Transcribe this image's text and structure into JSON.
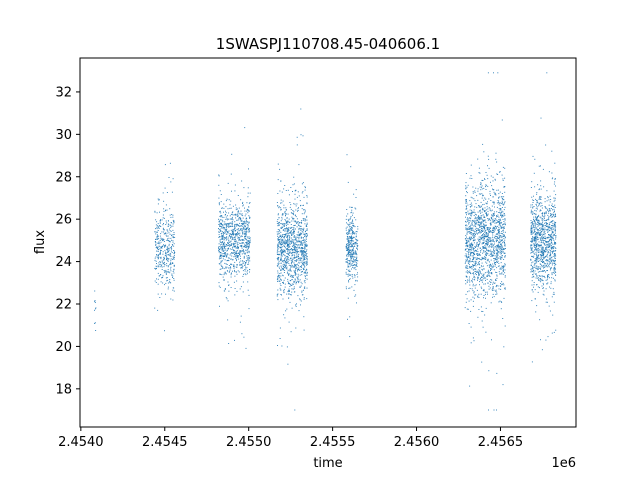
{
  "chart_data": {
    "type": "scatter",
    "title": "1SWASPJ110708.45-040606.1",
    "xlabel": "time",
    "ylabel": "flux",
    "x_offset_label": "1e6",
    "xlim": [
      2453995,
      2456950
    ],
    "ylim": [
      16.2,
      33.6
    ],
    "x_tick_labels": [
      "2.4540",
      "2.4545",
      "2.4550",
      "2.4555",
      "2.4560",
      "2.4565"
    ],
    "x_tick_values": [
      2454000,
      2454500,
      2455000,
      2455500,
      2456000,
      2456500
    ],
    "y_tick_values": [
      18,
      20,
      22,
      24,
      26,
      28,
      30,
      32
    ],
    "grid": false,
    "marker_color": "#1f77b4",
    "series": [
      {
        "clusters": [
          {
            "x_min": 2454080,
            "x_max": 2454090,
            "y_center": 21.8,
            "y_spread": 1.2,
            "n": 10
          },
          {
            "x_min": 2454440,
            "x_max": 2454560,
            "y_center": 24.6,
            "y_spread": 1.6,
            "n": 400
          },
          {
            "x_min": 2454820,
            "x_max": 2455010,
            "y_center": 25.0,
            "y_spread": 1.7,
            "n": 900
          },
          {
            "x_min": 2455170,
            "x_max": 2455350,
            "y_center": 24.6,
            "y_spread": 2.0,
            "n": 1100
          },
          {
            "x_min": 2455580,
            "x_max": 2455650,
            "y_center": 24.6,
            "y_spread": 1.5,
            "n": 380
          },
          {
            "x_min": 2456290,
            "x_max": 2456530,
            "y_center": 25.0,
            "y_spread": 2.3,
            "n": 1500
          },
          {
            "x_min": 2456680,
            "x_max": 2456830,
            "y_center": 25.0,
            "y_spread": 2.0,
            "n": 1000
          }
        ]
      }
    ]
  }
}
